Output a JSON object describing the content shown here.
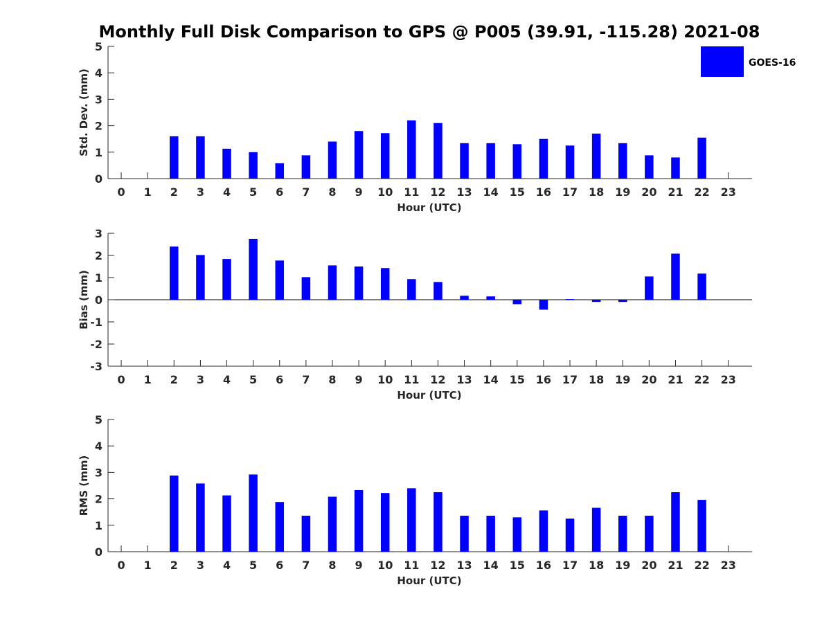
{
  "title": "Monthly Full Disk Comparison to GPS @ P005 (39.91, -115.28) 2021-08",
  "legend": {
    "label": "GOES-16",
    "placement": "top-right"
  },
  "colors": {
    "bar": "#0000ff",
    "axis": "#262626",
    "text": "#262626"
  },
  "chart_data": [
    {
      "type": "bar",
      "xlabel": "Hour (UTC)",
      "ylabel": "Std. Dev. (mm)",
      "ylim": [
        0,
        5
      ],
      "yticks": [
        0,
        1,
        2,
        3,
        4,
        5
      ],
      "xlim": [
        -0.5,
        23.9
      ],
      "categories": [
        0,
        1,
        2,
        3,
        4,
        5,
        6,
        7,
        8,
        9,
        10,
        11,
        12,
        13,
        14,
        15,
        16,
        17,
        18,
        19,
        20,
        21,
        22,
        23
      ],
      "series": [
        {
          "name": "GOES-16",
          "values": [
            null,
            null,
            1.6,
            1.6,
            1.13,
            1.0,
            0.58,
            0.88,
            1.4,
            1.8,
            1.72,
            2.2,
            2.1,
            1.34,
            1.34,
            1.3,
            1.5,
            1.25,
            1.7,
            1.34,
            0.88,
            0.8,
            1.55,
            null
          ]
        }
      ],
      "grid": false
    },
    {
      "type": "bar",
      "xlabel": "Hour (UTC)",
      "ylabel": "Bias (mm)",
      "ylim": [
        -3,
        3
      ],
      "yticks": [
        -3,
        -2,
        -1,
        0,
        1,
        2,
        3
      ],
      "xlim": [
        -0.5,
        23.9
      ],
      "zero_line": true,
      "categories": [
        0,
        1,
        2,
        3,
        4,
        5,
        6,
        7,
        8,
        9,
        10,
        11,
        12,
        13,
        14,
        15,
        16,
        17,
        18,
        19,
        20,
        21,
        22,
        23
      ],
      "series": [
        {
          "name": "GOES-16",
          "values": [
            null,
            null,
            2.4,
            2.02,
            1.84,
            2.75,
            1.77,
            1.02,
            1.55,
            1.5,
            1.43,
            0.93,
            0.8,
            0.18,
            0.15,
            -0.2,
            -0.45,
            0.03,
            -0.1,
            -0.1,
            1.05,
            2.08,
            1.18,
            null
          ]
        }
      ],
      "grid": false
    },
    {
      "type": "bar",
      "xlabel": "Hour (UTC)",
      "ylabel": "RMS (mm)",
      "ylim": [
        0,
        5
      ],
      "yticks": [
        0,
        1,
        2,
        3,
        4,
        5
      ],
      "xlim": [
        -0.5,
        23.9
      ],
      "categories": [
        0,
        1,
        2,
        3,
        4,
        5,
        6,
        7,
        8,
        9,
        10,
        11,
        12,
        13,
        14,
        15,
        16,
        17,
        18,
        19,
        20,
        21,
        22,
        23
      ],
      "series": [
        {
          "name": "GOES-16",
          "values": [
            null,
            null,
            2.88,
            2.58,
            2.13,
            2.92,
            1.88,
            1.36,
            2.08,
            2.33,
            2.22,
            2.4,
            2.25,
            1.36,
            1.36,
            1.3,
            1.56,
            1.25,
            1.66,
            1.36,
            1.36,
            2.25,
            1.96,
            null
          ]
        }
      ],
      "grid": false
    }
  ]
}
